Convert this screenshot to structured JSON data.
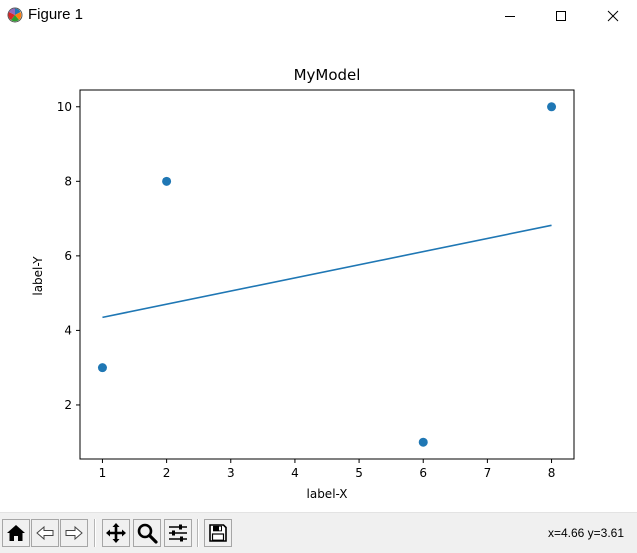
{
  "window": {
    "title": "Figure 1",
    "icon": "matplotlib-logo-icon"
  },
  "titlebar_buttons": [
    {
      "name": "minimize-button",
      "icon": "minimize-icon"
    },
    {
      "name": "maximize-button",
      "icon": "maximize-icon"
    },
    {
      "name": "close-button",
      "icon": "close-icon"
    }
  ],
  "toolbar": {
    "buttons": [
      {
        "name": "home-button",
        "icon": "home-icon"
      },
      {
        "name": "back-button",
        "icon": "back-arrow-icon"
      },
      {
        "name": "forward-button",
        "icon": "forward-arrow-icon"
      },
      {
        "name": "pan-button",
        "icon": "pan-move-icon"
      },
      {
        "name": "zoom-button",
        "icon": "zoom-magnifier-icon"
      },
      {
        "name": "configure-subplots-button",
        "icon": "sliders-icon"
      },
      {
        "name": "save-button",
        "icon": "floppy-disk-icon"
      }
    ],
    "coordinates": "x=4.66 y=3.61"
  },
  "colors": {
    "series": "#1f77b4",
    "toolbar_bg": "#f0f0f0"
  },
  "chart_data": {
    "type": "scatter",
    "title": "MyModel",
    "xlabel": "label-X",
    "ylabel": "label-Y",
    "xlim": [
      0.65,
      8.35
    ],
    "ylim": [
      0.55,
      10.45
    ],
    "xticks": [
      1,
      2,
      3,
      4,
      5,
      6,
      7,
      8
    ],
    "yticks": [
      2,
      4,
      6,
      8,
      10
    ],
    "grid": false,
    "series": [
      {
        "type": "scatter",
        "x": [
          1,
          2,
          6,
          8
        ],
        "y": [
          3,
          8,
          1,
          10
        ]
      },
      {
        "type": "line",
        "x": [
          1,
          8
        ],
        "y": [
          4.35,
          6.82
        ]
      }
    ]
  }
}
